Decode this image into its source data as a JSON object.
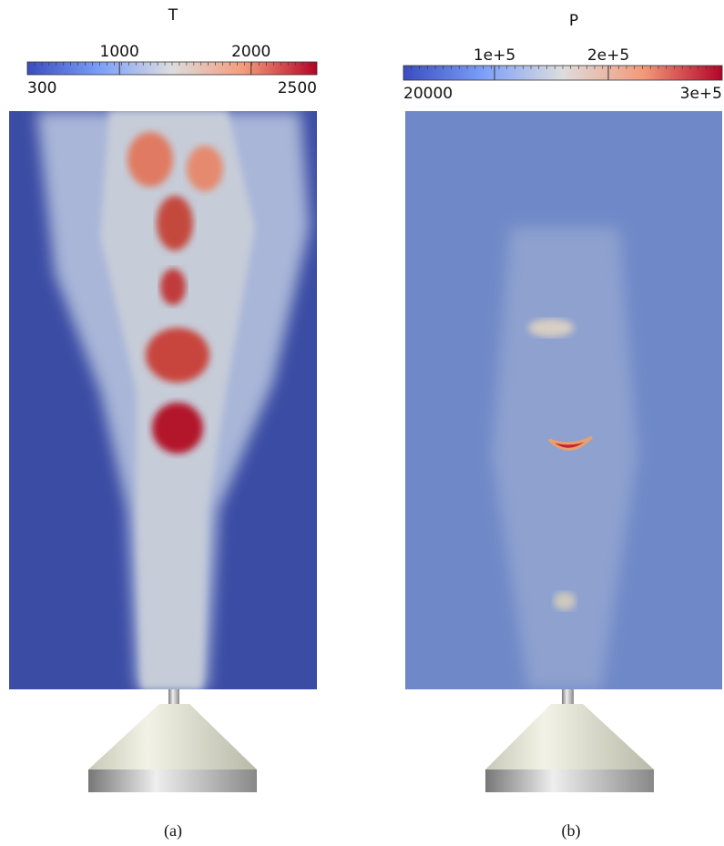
{
  "panels": [
    {
      "colorbar": {
        "title": "T",
        "range": [
          300,
          2500
        ],
        "ticks": [
          1000,
          2000
        ]
      },
      "caption": "(a)"
    },
    {
      "colorbar": {
        "title": "P",
        "range": [
          20000,
          {
            "value": 300000,
            "label": "3e+5"
          }
        ],
        "ticks": [
          {
            "value": 100000,
            "label": "1e+5"
          },
          {
            "value": 200000,
            "label": "2e+5"
          }
        ]
      },
      "caption": "(b)"
    }
  ]
}
